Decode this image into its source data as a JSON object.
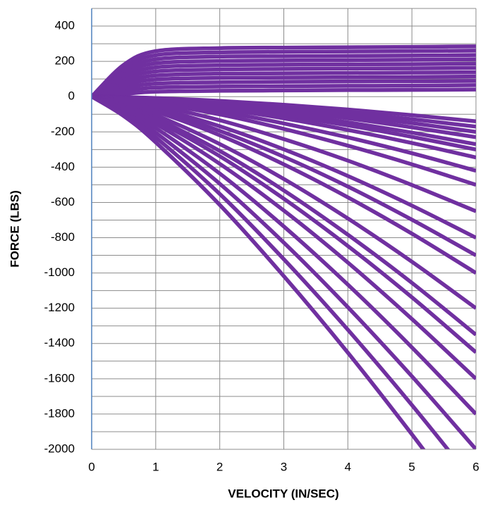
{
  "chart_data": {
    "type": "line",
    "xlabel": "VELOCITY (IN/SEC)",
    "ylabel": "FORCE (LBS)",
    "x": [
      0,
      0.5,
      1,
      2,
      3,
      4,
      5,
      6
    ],
    "xlim": [
      0,
      6
    ],
    "xticks": [
      0,
      1,
      2,
      3,
      4,
      5,
      6
    ],
    "ylim": [
      -2000,
      500
    ],
    "yticks": [
      -2000,
      -1800,
      -1600,
      -1400,
      -1200,
      -1000,
      -800,
      -600,
      -400,
      -200,
      0,
      200,
      400
    ],
    "minor_yticks": [
      -1900,
      -1700,
      -1500,
      -1300,
      -1100,
      -900,
      -700,
      -500,
      -300,
      -100,
      100,
      300,
      500
    ],
    "grid": true,
    "series": [
      {
        "color": "#7030a0",
        "values": [
          0,
          15,
          28,
          33,
          35,
          37,
          38,
          40
        ]
      },
      {
        "color": "#7030a0",
        "values": [
          0,
          32,
          51,
          57,
          59,
          61,
          62,
          65
        ]
      },
      {
        "color": "#7030a0",
        "values": [
          0,
          48,
          74,
          81,
          84,
          86,
          87,
          89
        ]
      },
      {
        "color": "#7030a0",
        "values": [
          0,
          65,
          97,
          106,
          108,
          110,
          111,
          114
        ]
      },
      {
        "color": "#7030a0",
        "values": [
          0,
          81,
          120,
          130,
          132,
          134,
          136,
          138
        ]
      },
      {
        "color": "#7030a0",
        "values": [
          0,
          98,
          143,
          154,
          157,
          159,
          160,
          163
        ]
      },
      {
        "color": "#7030a0",
        "values": [
          0,
          114,
          166,
          178,
          181,
          183,
          184,
          187
        ]
      },
      {
        "color": "#7030a0",
        "values": [
          0,
          131,
          189,
          202,
          205,
          207,
          209,
          212
        ]
      },
      {
        "color": "#7030a0",
        "values": [
          0,
          147,
          212,
          227,
          229,
          231,
          233,
          236
        ]
      },
      {
        "color": "#7030a0",
        "values": [
          0,
          164,
          235,
          251,
          254,
          256,
          258,
          261
        ]
      },
      {
        "color": "#7030a0",
        "values": [
          0,
          180,
          258,
          275,
          278,
          280,
          282,
          285
        ]
      },
      {
        "color": "#7030a0",
        "values": [
          0,
          -3,
          -8,
          -24,
          -46,
          -73,
          -105,
          -140
        ]
      },
      {
        "color": "#7030a0",
        "values": [
          0,
          -3,
          -10,
          -30,
          -57,
          -90,
          -128,
          -170
        ]
      },
      {
        "color": "#7030a0",
        "values": [
          0,
          -4,
          -12,
          -36,
          -68,
          -106,
          -150,
          -200
        ]
      },
      {
        "color": "#7030a0",
        "values": [
          0,
          -5,
          -15,
          -42,
          -79,
          -123,
          -174,
          -230
        ]
      },
      {
        "color": "#7030a0",
        "values": [
          0,
          -6,
          -18,
          -50,
          -94,
          -146,
          -204,
          -270
        ]
      },
      {
        "color": "#7030a0",
        "values": [
          0,
          -7,
          -20,
          -57,
          -106,
          -163,
          -228,
          -300
        ]
      },
      {
        "color": "#7030a0",
        "values": [
          0,
          -9,
          -24,
          -67,
          -123,
          -189,
          -263,
          -345
        ]
      },
      {
        "color": "#7030a0",
        "values": [
          0,
          -11,
          -30,
          -84,
          -152,
          -231,
          -321,
          -420
        ]
      },
      {
        "color": "#7030a0",
        "values": [
          0,
          -14,
          -37,
          -101,
          -183,
          -278,
          -384,
          -500
        ]
      },
      {
        "color": "#7030a0",
        "values": [
          0,
          -18,
          -49,
          -134,
          -241,
          -363,
          -501,
          -650
        ]
      },
      {
        "color": "#7030a0",
        "values": [
          0,
          -23,
          -63,
          -168,
          -299,
          -450,
          -618,
          -800
        ]
      },
      {
        "color": "#7030a0",
        "values": [
          0,
          -28,
          -73,
          -194,
          -341,
          -510,
          -698,
          -900
        ]
      },
      {
        "color": "#7030a0",
        "values": [
          0,
          -33,
          -84,
          -219,
          -384,
          -571,
          -777,
          -1000
        ]
      },
      {
        "color": "#7030a0",
        "values": [
          0,
          -41,
          -104,
          -269,
          -467,
          -691,
          -936,
          -1200
        ]
      },
      {
        "color": "#7030a0",
        "values": [
          0,
          -49,
          -122,
          -308,
          -532,
          -783,
          -1056,
          -1350
        ]
      },
      {
        "color": "#7030a0",
        "values": [
          0,
          -55,
          -135,
          -338,
          -579,
          -847,
          -1138,
          -1450
        ]
      },
      {
        "color": "#7030a0",
        "values": [
          0,
          -63,
          -154,
          -381,
          -646,
          -941,
          -1261,
          -1600
        ]
      },
      {
        "color": "#7030a0",
        "values": [
          0,
          -74,
          -178,
          -436,
          -736,
          -1066,
          -1422,
          -1800
        ]
      },
      {
        "color": "#7030a0",
        "values": [
          0,
          -85,
          -204,
          -494,
          -828,
          -1194,
          -1586,
          -2000
        ]
      },
      {
        "color": "#7030a0",
        "values": [
          0,
          -97,
          -231,
          -552,
          -922,
          -1322,
          -1749,
          -2200
        ]
      },
      {
        "color": "#7030a0",
        "values": [
          0,
          -110,
          -259,
          -614,
          -1018,
          -1452,
          -1915,
          -2400
        ]
      }
    ]
  }
}
